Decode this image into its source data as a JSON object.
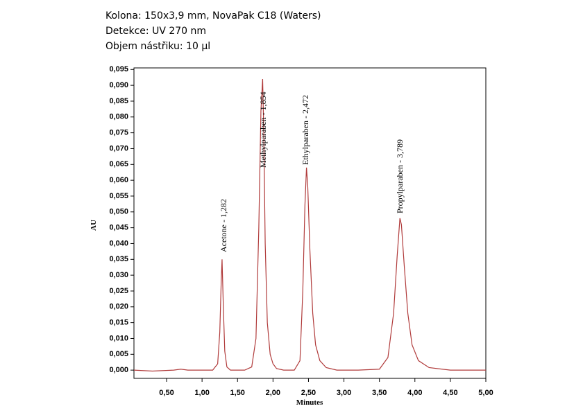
{
  "chart_data": {
    "type": "line",
    "header": [
      "Kolona: 150x3,9 mm, NovaPak C18 (Waters)",
      "Detekce: UV 270 nm",
      "Objem nástřiku: 10 µl"
    ],
    "x_label": "Minutes",
    "y_label": "AU",
    "annotations": [
      "Acetone - 1,282",
      "Methylparaben - 1,854",
      "Ethylparaben - 2,472",
      "Propylparaben - 3,789"
    ],
    "x": [
      0.04,
      0.3,
      0.6,
      0.7,
      0.8,
      1.0,
      1.15,
      1.22,
      1.25,
      1.27,
      1.282,
      1.3,
      1.32,
      1.35,
      1.4,
      1.5,
      1.6,
      1.7,
      1.76,
      1.8,
      1.83,
      1.854,
      1.87,
      1.89,
      1.92,
      1.96,
      2.0,
      2.05,
      2.15,
      2.3,
      2.38,
      2.42,
      2.45,
      2.472,
      2.49,
      2.52,
      2.56,
      2.6,
      2.66,
      2.75,
      2.9,
      3.2,
      3.5,
      3.62,
      3.7,
      3.75,
      3.789,
      3.81,
      3.85,
      3.9,
      3.96,
      4.05,
      4.2,
      4.5,
      5.0
    ],
    "series": [
      {
        "color": "#b03a3a",
        "values": [
          0,
          -0.0003,
          0,
          0.0003,
          0,
          0,
          0,
          0.002,
          0.012,
          0.028,
          0.035,
          0.02,
          0.006,
          0.001,
          0,
          0,
          0,
          0.001,
          0.01,
          0.045,
          0.082,
          0.092,
          0.075,
          0.04,
          0.015,
          0.005,
          0.002,
          0.0005,
          0,
          0,
          0.003,
          0.025,
          0.052,
          0.064,
          0.058,
          0.038,
          0.018,
          0.008,
          0.003,
          0.0008,
          0,
          0,
          0.0003,
          0.004,
          0.018,
          0.036,
          0.048,
          0.046,
          0.033,
          0.018,
          0.008,
          0.003,
          0.0008,
          0,
          0
        ]
      }
    ],
    "xlim": [
      0.04,
      5.0
    ],
    "ylim": [
      -0.0026,
      0.0955
    ],
    "xticks": [
      {
        "value": 0.5,
        "label": "0,50"
      },
      {
        "value": 1.0,
        "label": "1,00"
      },
      {
        "value": 1.5,
        "label": "1,50"
      },
      {
        "value": 2.0,
        "label": "2,00"
      },
      {
        "value": 2.5,
        "label": "2,50"
      },
      {
        "value": 3.0,
        "label": "3,00"
      },
      {
        "value": 3.5,
        "label": "3,50"
      },
      {
        "value": 4.0,
        "label": "4,00"
      },
      {
        "value": 4.5,
        "label": "4,50"
      },
      {
        "value": 5.0,
        "label": "5,00"
      }
    ],
    "yticks": [
      {
        "value": 0,
        "label": "0,000"
      },
      {
        "value": 0.005,
        "label": "0,005"
      },
      {
        "value": 0.01,
        "label": "0,010"
      },
      {
        "value": 0.015,
        "label": "0,015"
      },
      {
        "value": 0.02,
        "label": "0,020"
      },
      {
        "value": 0.025,
        "label": "0,025"
      },
      {
        "value": 0.03,
        "label": "0,030"
      },
      {
        "value": 0.035,
        "label": "0,035"
      },
      {
        "value": 0.04,
        "label": "0,040"
      },
      {
        "value": 0.045,
        "label": "0,045"
      },
      {
        "value": 0.05,
        "label": "0,050"
      },
      {
        "value": 0.055,
        "label": "0,055"
      },
      {
        "value": 0.06,
        "label": "0,060"
      },
      {
        "value": 0.065,
        "label": "0,065"
      },
      {
        "value": 0.07,
        "label": "0,070"
      },
      {
        "value": 0.075,
        "label": "0,075"
      },
      {
        "value": 0.08,
        "label": "0,080"
      },
      {
        "value": 0.085,
        "label": "0,085"
      },
      {
        "value": 0.09,
        "label": "0,090"
      },
      {
        "value": 0.095,
        "label": "0,095"
      }
    ]
  }
}
